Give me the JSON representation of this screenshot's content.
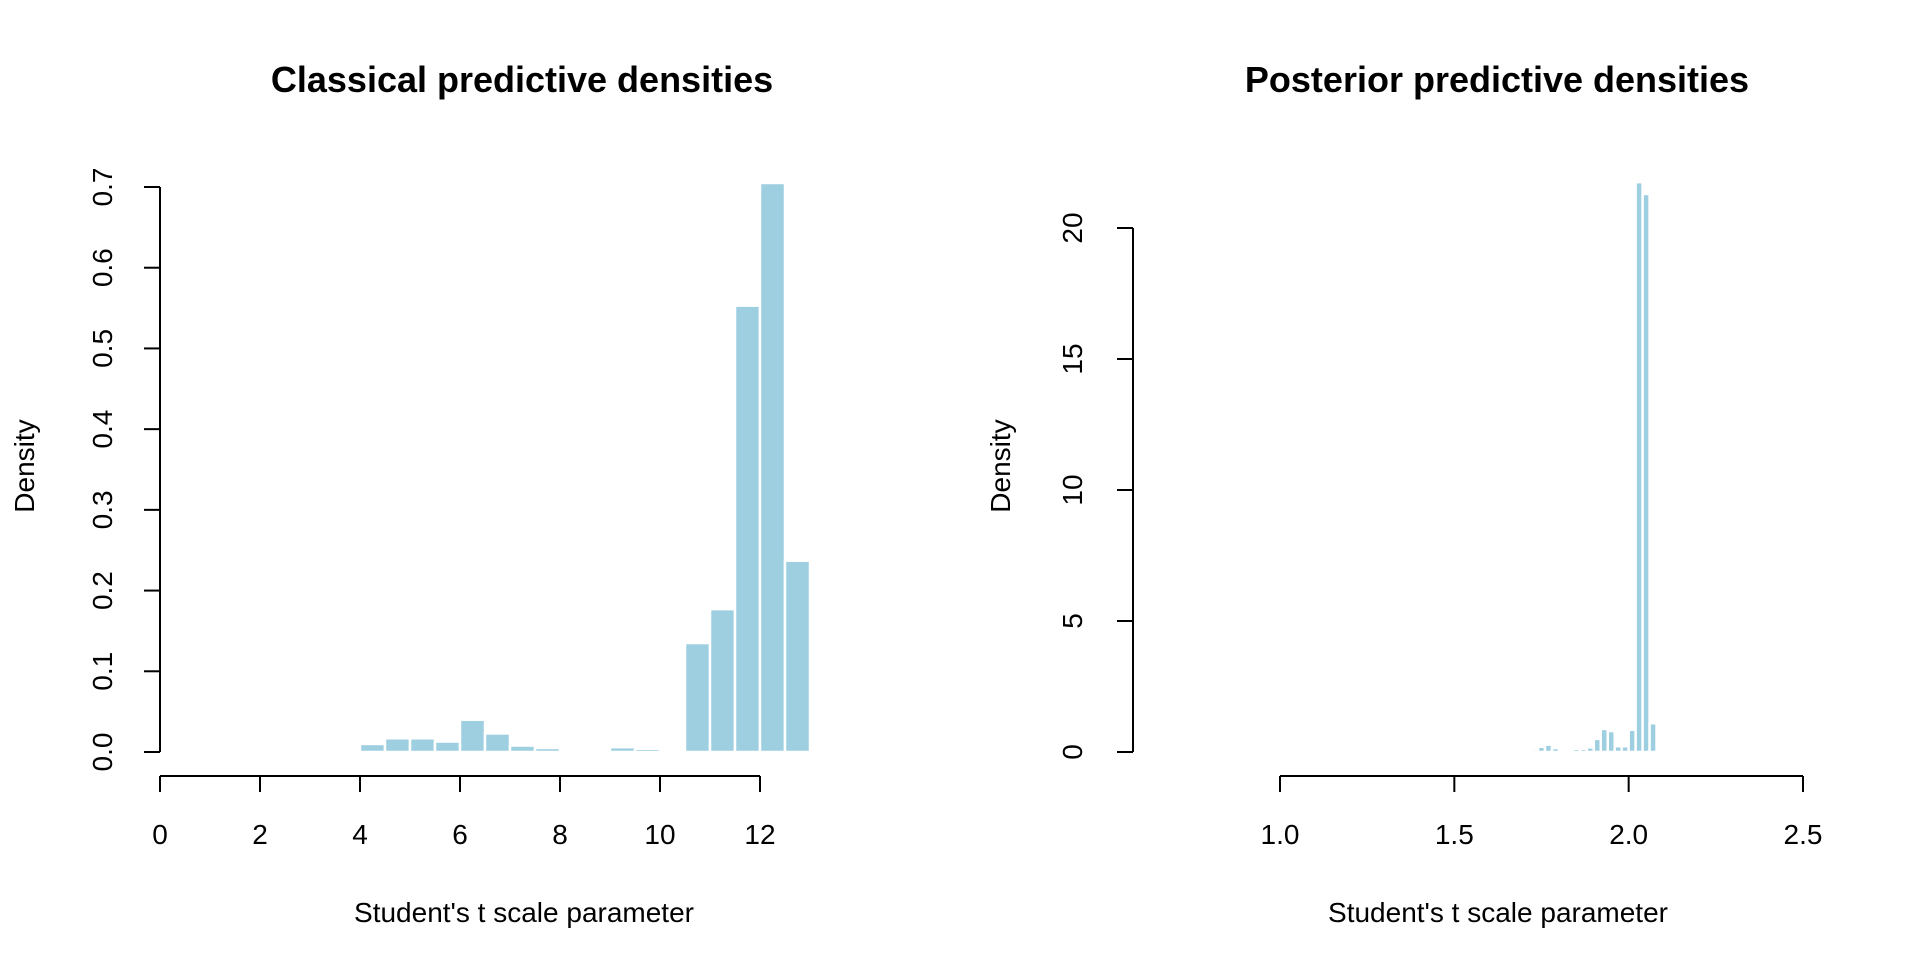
{
  "chart_data": [
    {
      "type": "bar",
      "title": "Classical predictive densities",
      "xlabel": "Student's t scale parameter",
      "ylabel": "Density",
      "xlim": [
        0,
        13
      ],
      "ylim": [
        0,
        0.7
      ],
      "xticks": [
        0,
        2,
        4,
        6,
        8,
        10,
        12
      ],
      "xtick_labels": [
        "0",
        "2",
        "4",
        "6",
        "8",
        "10",
        "12"
      ],
      "yticks": [
        0,
        0.1,
        0.2,
        0.3,
        0.4,
        0.5,
        0.6,
        0.7
      ],
      "ytick_labels": [
        "0.0",
        "0.1",
        "0.2",
        "0.3",
        "0.4",
        "0.5",
        "0.6",
        "0.7"
      ],
      "bin_width": 0.5,
      "bins": [
        {
          "x": 3.0,
          "value": 0.001
        },
        {
          "x": 3.5,
          "value": 0.002
        },
        {
          "x": 4.0,
          "value": 0.01
        },
        {
          "x": 4.5,
          "value": 0.017
        },
        {
          "x": 5.0,
          "value": 0.017
        },
        {
          "x": 5.5,
          "value": 0.013
        },
        {
          "x": 6.0,
          "value": 0.04
        },
        {
          "x": 6.5,
          "value": 0.023
        },
        {
          "x": 7.0,
          "value": 0.008
        },
        {
          "x": 7.5,
          "value": 0.005
        },
        {
          "x": 8.0,
          "value": 0.003
        },
        {
          "x": 8.5,
          "value": 0.003
        },
        {
          "x": 9.0,
          "value": 0.006
        },
        {
          "x": 9.5,
          "value": 0.004
        },
        {
          "x": 10.0,
          "value": 0.002
        },
        {
          "x": 10.5,
          "value": 0.135
        },
        {
          "x": 11.0,
          "value": 0.177
        },
        {
          "x": 11.5,
          "value": 0.553
        },
        {
          "x": 12.0,
          "value": 0.705
        },
        {
          "x": 12.5,
          "value": 0.237
        }
      ]
    },
    {
      "type": "bar",
      "title": "Posterior predictive densities",
      "xlabel": "Student's t scale parameter",
      "ylabel": "Density",
      "xlim": [
        1.0,
        2.5
      ],
      "ylim": [
        0,
        20
      ],
      "xticks": [
        1.0,
        1.5,
        2.0,
        2.5
      ],
      "xtick_labels": [
        "1.0",
        "1.5",
        "2.0",
        "2.5"
      ],
      "yticks": [
        0,
        5,
        10,
        15,
        20
      ],
      "ytick_labels": [
        "0",
        "5",
        "10",
        "15",
        "20"
      ],
      "bin_width": 0.02,
      "bins": [
        {
          "x": 1.64,
          "value": 0.05
        },
        {
          "x": 1.7,
          "value": 0.05
        },
        {
          "x": 1.72,
          "value": 0.1
        },
        {
          "x": 1.74,
          "value": 0.2
        },
        {
          "x": 1.76,
          "value": 0.28
        },
        {
          "x": 1.78,
          "value": 0.15
        },
        {
          "x": 1.82,
          "value": 0.05
        },
        {
          "x": 1.84,
          "value": 0.12
        },
        {
          "x": 1.86,
          "value": 0.12
        },
        {
          "x": 1.88,
          "value": 0.18
        },
        {
          "x": 1.9,
          "value": 0.5
        },
        {
          "x": 1.92,
          "value": 0.88
        },
        {
          "x": 1.94,
          "value": 0.8
        },
        {
          "x": 1.96,
          "value": 0.22
        },
        {
          "x": 1.98,
          "value": 0.22
        },
        {
          "x": 2.0,
          "value": 0.85
        },
        {
          "x": 2.02,
          "value": 21.75
        },
        {
          "x": 2.04,
          "value": 21.3
        },
        {
          "x": 2.06,
          "value": 1.1
        }
      ]
    }
  ]
}
